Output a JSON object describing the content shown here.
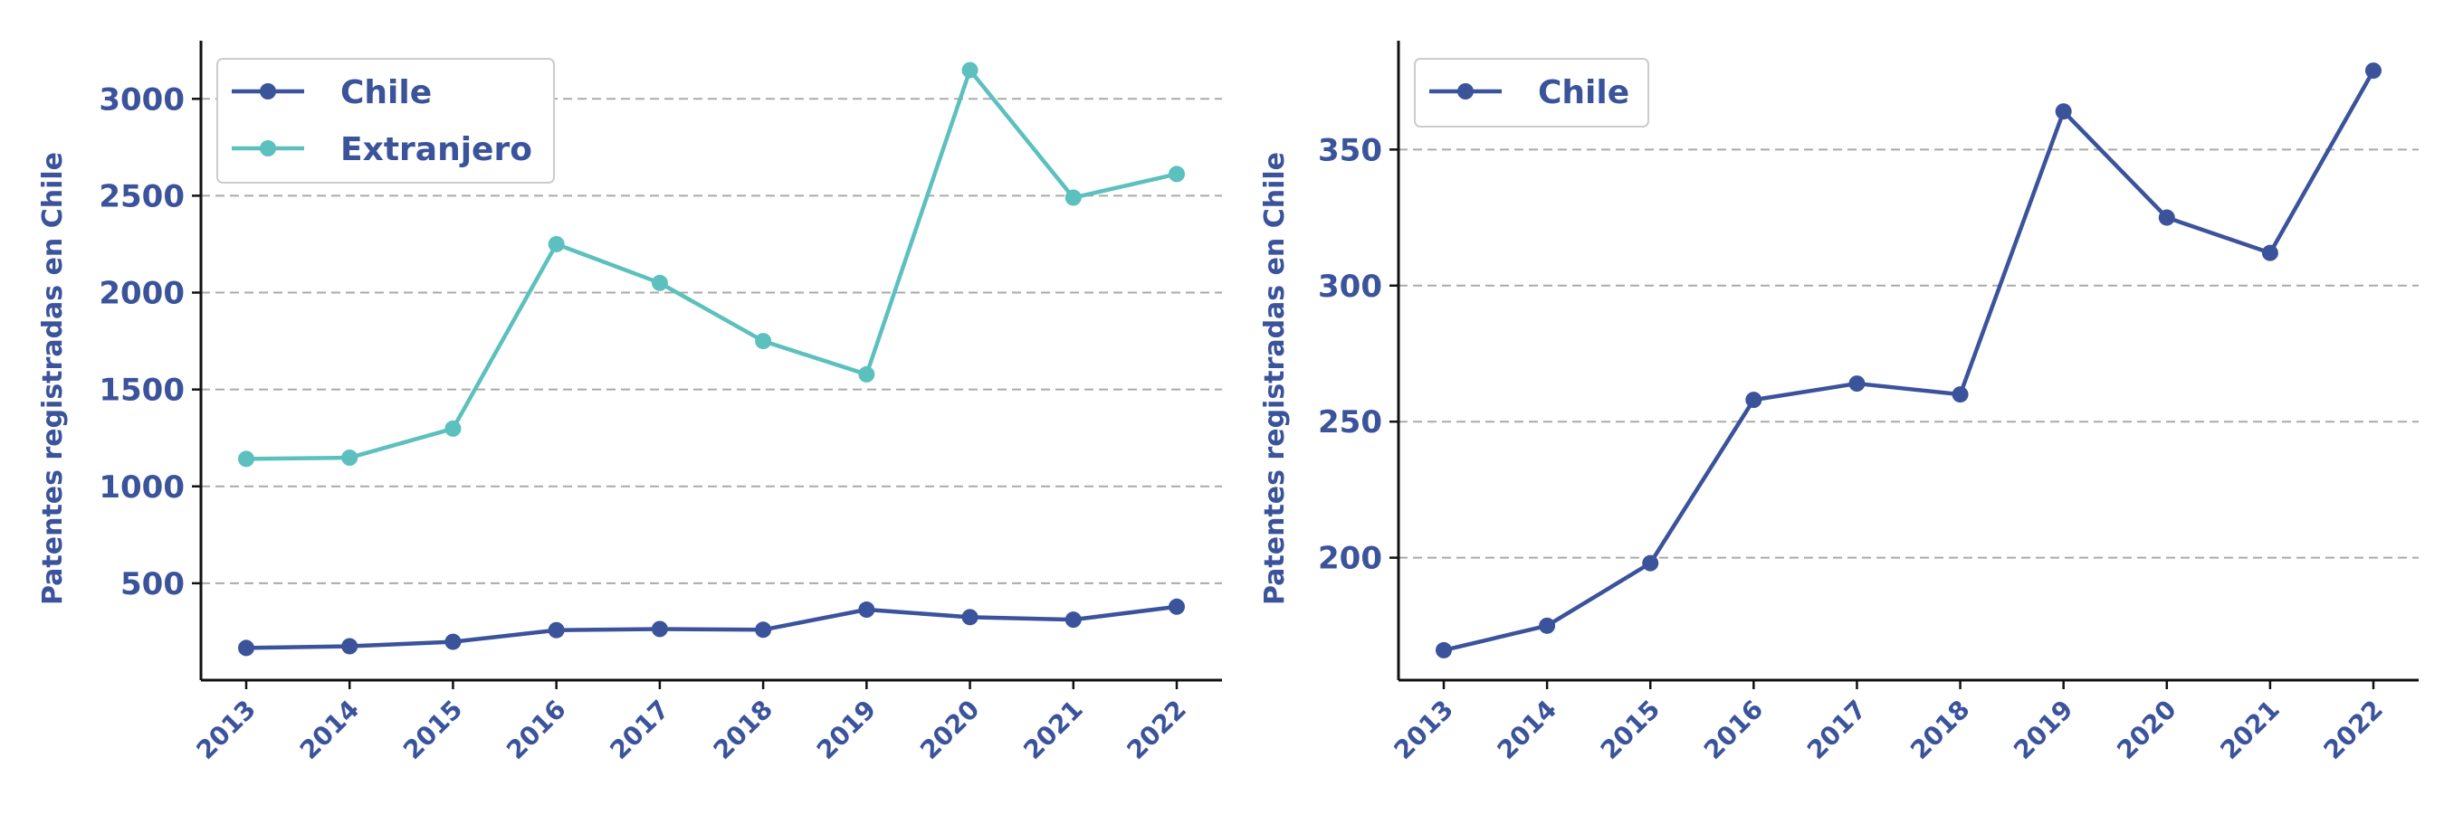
{
  "colors": {
    "chile": "#3a539b",
    "extranjero": "#5bc0be",
    "text": "#3a539b"
  },
  "chart_data": [
    {
      "type": "line",
      "x": [
        "2013",
        "2014",
        "2015",
        "2016",
        "2017",
        "2018",
        "2019",
        "2020",
        "2021",
        "2022"
      ],
      "series": [
        {
          "name": "Chile",
          "color": "#3a539b",
          "values": [
            166,
            175,
            198,
            258,
            264,
            260,
            364,
            325,
            312,
            379
          ]
        },
        {
          "name": "Extranjero",
          "color": "#5bc0be",
          "values": [
            1142,
            1148,
            1298,
            2250,
            2050,
            1750,
            1578,
            3148,
            2490,
            2612
          ]
        }
      ],
      "ylabel": "Patentes registradas en Chile",
      "ylim": [
        0,
        3300
      ],
      "yticks": [
        500,
        1000,
        1500,
        2000,
        2500,
        3000
      ],
      "grid": "y-dashed",
      "legend": "top-left"
    },
    {
      "type": "line",
      "x": [
        "2013",
        "2014",
        "2015",
        "2016",
        "2017",
        "2018",
        "2019",
        "2020",
        "2021",
        "2022"
      ],
      "series": [
        {
          "name": "Chile",
          "color": "#3a539b",
          "values": [
            166,
            175,
            198,
            258,
            264,
            260,
            364,
            325,
            312,
            379
          ]
        }
      ],
      "ylabel": "Patentes registradas en Chile",
      "ylim": [
        155,
        390
      ],
      "yticks": [
        200,
        250,
        300,
        350
      ],
      "grid": "y-dashed",
      "legend": "top-left"
    }
  ]
}
